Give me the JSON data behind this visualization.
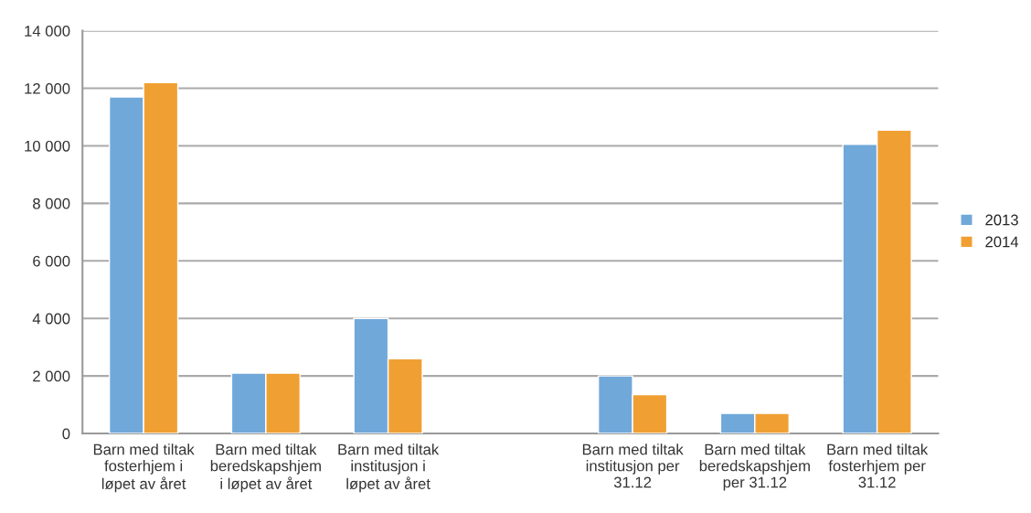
{
  "chart_data": {
    "type": "bar",
    "categories": [
      "Barn med tiltak\nfosterhjem i\nløpet av året",
      "Barn med tiltak\nberedskapshjem\ni løpet av året",
      "Barn med tiltak\ninstitusjon i\nløpet av året",
      null,
      "Barn med tiltak\ninstitusjon per\n31.12",
      "Barn med tiltak\nberedskapshjem\nper 31.12",
      "Barn med tiltak\nfosterhjem per\n31.12"
    ],
    "series": [
      {
        "name": "2013",
        "color": "#70a8da",
        "values": [
          11700,
          2100,
          4000,
          null,
          2000,
          700,
          10050
        ]
      },
      {
        "name": "2014",
        "color": "#f0a033",
        "values": [
          12200,
          2100,
          2600,
          null,
          1350,
          700,
          10550
        ]
      }
    ],
    "ylim": [
      0,
      14000
    ],
    "yticks": [
      0,
      {
        "value": 2000,
        "label": "2 000"
      },
      {
        "value": 4000,
        "label": "4 000"
      },
      {
        "value": 6000,
        "label": "6 000"
      },
      {
        "value": 8000,
        "label": "8 000"
      },
      {
        "value": 10000,
        "label": "10 000"
      },
      {
        "value": 12000,
        "label": "12 000"
      },
      {
        "value": 14000,
        "label": "14 000"
      }
    ],
    "grid": "y",
    "legend": "right"
  }
}
